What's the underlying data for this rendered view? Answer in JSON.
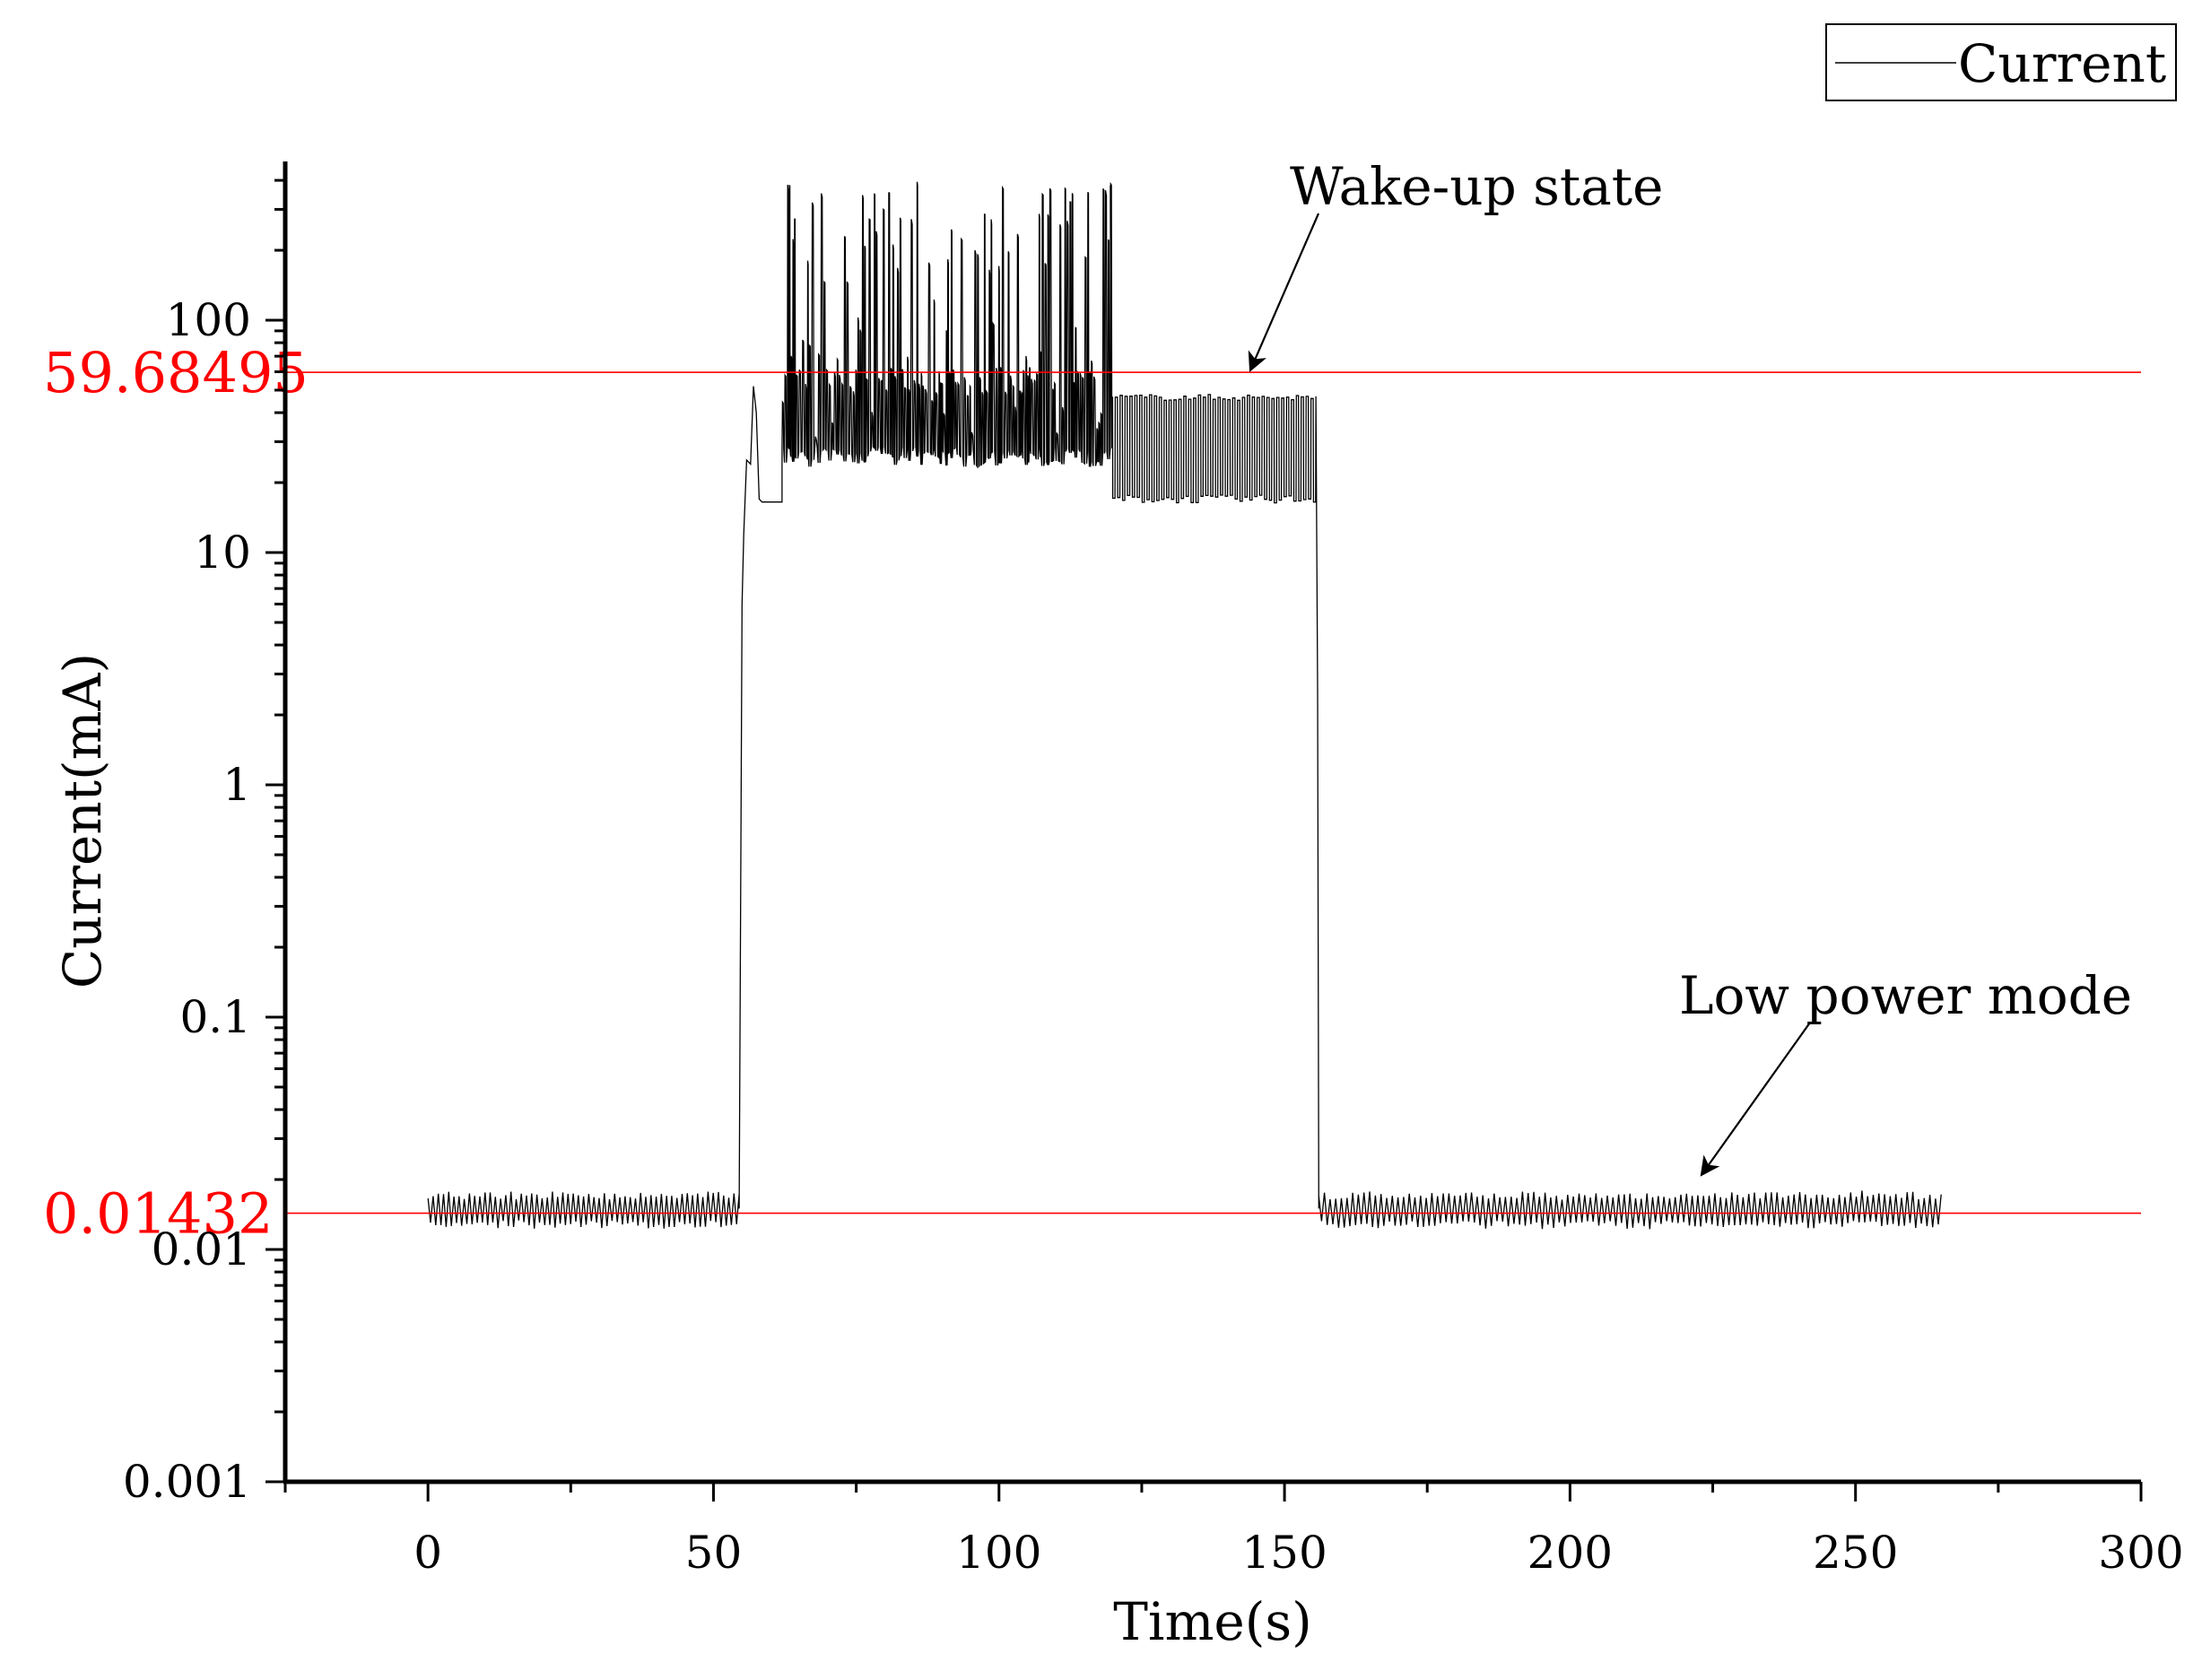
{
  "chart_data": {
    "type": "line",
    "xlabel": "Time(s)",
    "ylabel": "Current(mA)",
    "xlim": [
      -25,
      300
    ],
    "ylim": [
      0.001,
      500
    ],
    "yscale": "log",
    "x_ticks": [
      0,
      50,
      100,
      150,
      200,
      250,
      300
    ],
    "x_tick_labels": [
      "0",
      "50",
      "100",
      "150",
      "200",
      "250",
      "300"
    ],
    "y_ticks": [
      0.001,
      0.01,
      0.1,
      1,
      10,
      100
    ],
    "y_tick_labels": [
      "0.001",
      "0.01",
      "0.1",
      "1",
      "10",
      "100"
    ],
    "grid": false,
    "legend": {
      "position": "top-right",
      "entries": [
        "Current"
      ]
    },
    "series": [
      {
        "name": "Current",
        "color": "#000000",
        "segments": [
          {
            "x_start": 0,
            "x_end": 54.5,
            "state": "low",
            "low": 0.0125,
            "high": 0.0175,
            "cycles": 60
          },
          {
            "x_start": 54.5,
            "x_end": 55,
            "state": "rise",
            "points": [
              [
                54.5,
                0.015
              ],
              [
                55,
                6
              ],
              [
                55.3,
                12
              ],
              [
                55.8,
                25
              ],
              [
                56.5,
                24
              ],
              [
                57,
                52
              ],
              [
                57.5,
                40
              ],
              [
                58,
                17
              ],
              [
                58.5,
                16.5
              ],
              [
                62,
                16.5
              ]
            ]
          },
          {
            "x_start": 62,
            "x_end": 119.5,
            "state": "active-spiky",
            "base": 26,
            "mid": 55,
            "peak_max": 400,
            "peak_min": 60
          },
          {
            "x_start": 119.5,
            "x_end": 155.5,
            "state": "active-square",
            "low": 17,
            "high": 47,
            "cycles": 42
          },
          {
            "x_start": 155.5,
            "x_end": 156,
            "state": "fall",
            "points": [
              [
                155.5,
                47
              ],
              [
                155.8,
                2.5
              ],
              [
                156,
                0.015
              ]
            ]
          },
          {
            "x_start": 156,
            "x_end": 265,
            "state": "low",
            "low": 0.0125,
            "high": 0.0175,
            "cycles": 110
          }
        ]
      }
    ],
    "reference_lines": [
      {
        "y": 59.68495,
        "label": "59.68495",
        "color": "#ff0000"
      },
      {
        "y": 0.01432,
        "label": "0.01432",
        "color": "#ff0000"
      }
    ],
    "annotations": [
      {
        "text": "Wake-up state",
        "arrow_to": [
          144,
          59.68495
        ]
      },
      {
        "text": "Low power mode",
        "arrow_to": [
          223,
          0.016
        ]
      }
    ]
  }
}
